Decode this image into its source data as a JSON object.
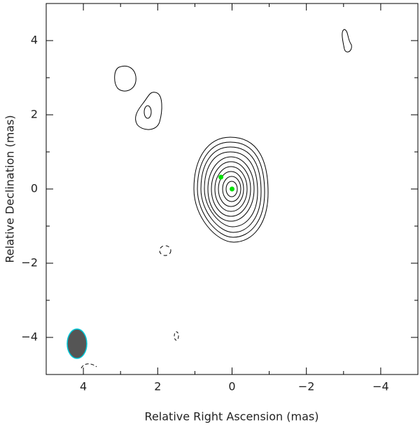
{
  "chart_data": {
    "type": "scatter",
    "xlabel": "Relative Right Ascension (mas)",
    "ylabel": "Relative Declination (mas)",
    "xlim": [
      5,
      -5
    ],
    "ylim": [
      -5,
      5
    ],
    "xticks": [
      {
        "value": 4,
        "label": "4"
      },
      {
        "value": 2,
        "label": "2"
      },
      0,
      {
        "value": -2,
        "label": "−2"
      },
      {
        "value": -4,
        "label": "−4"
      }
    ],
    "yticks": [
      {
        "value": -4,
        "label": "−4"
      },
      {
        "value": -2,
        "label": "−2"
      },
      0,
      2,
      4
    ],
    "xminorticks": [
      5,
      3,
      1,
      -1,
      -3,
      -5
    ],
    "yminorticks": [
      -5,
      -3,
      -1,
      1,
      3,
      5
    ],
    "x": [
      0,
      0.3
    ],
    "values": [
      0,
      0.32
    ],
    "color": "#00e000"
  }
}
